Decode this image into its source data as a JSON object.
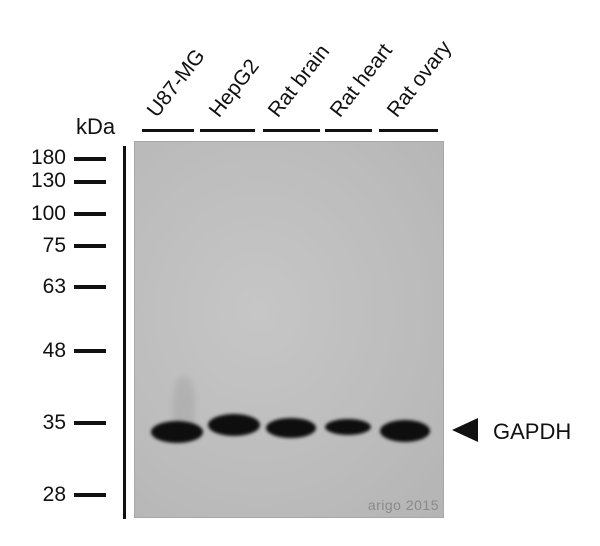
{
  "lanes": [
    "U87-MG",
    "HepG2",
    "Rat brain",
    "Rat heart",
    "Rat ovary"
  ],
  "unit": "kDa",
  "markers": [
    "180",
    "130",
    "100",
    "75",
    "63",
    "48",
    "35",
    "28"
  ],
  "target": "GAPDH",
  "watermark": "arigo 2015",
  "colors": {
    "ink": "#111111",
    "membrane": "#bcbcbc",
    "band": "#0e0e0e"
  }
}
